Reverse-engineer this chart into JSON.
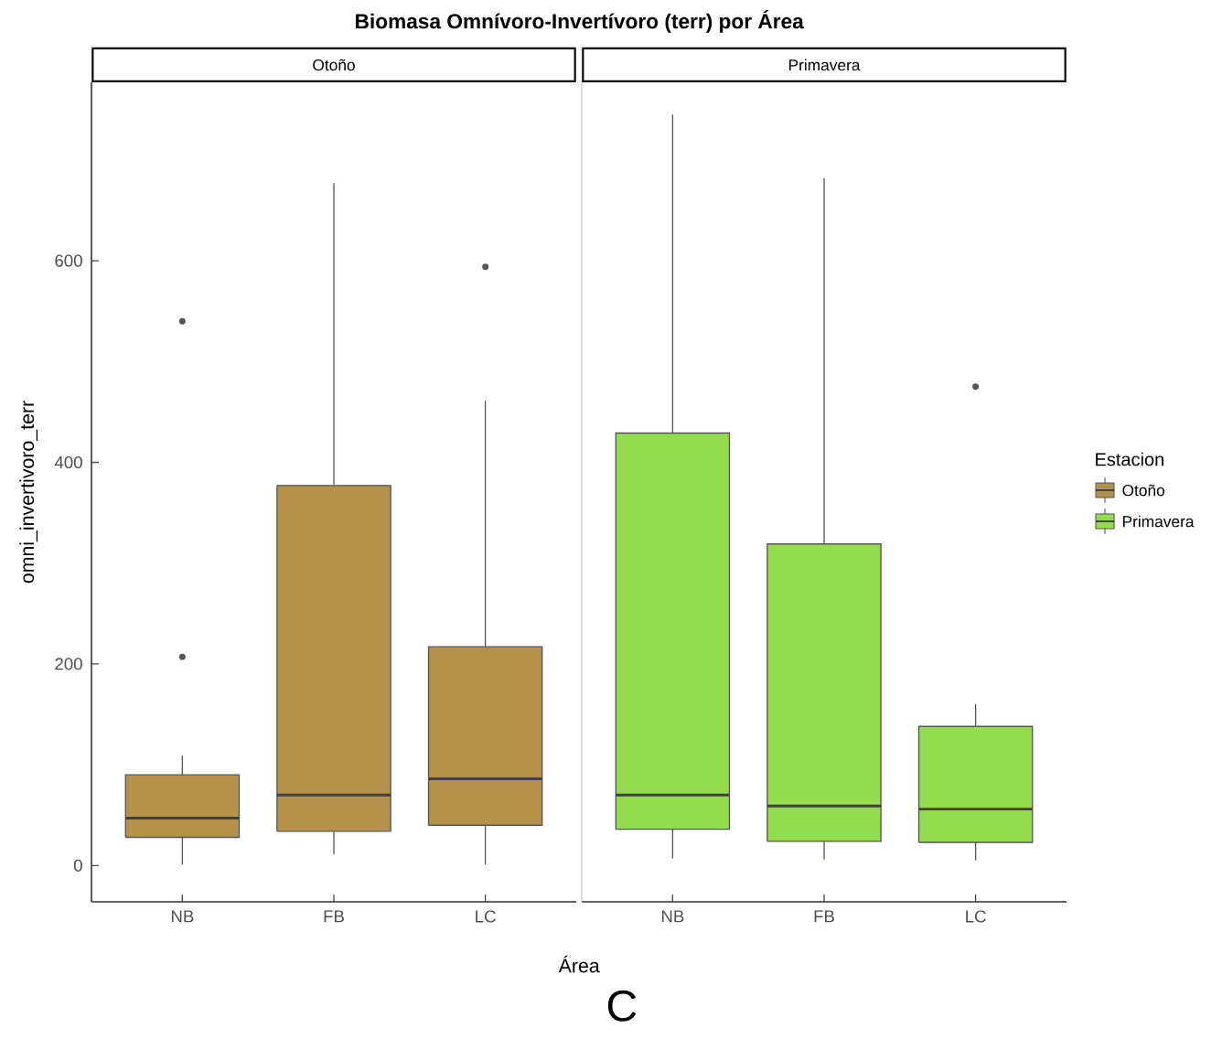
{
  "chart_data": [
    {
      "type": "box",
      "title": "Biomasa Omnívoro-Invertívoro (terr) por Área",
      "subtitle": "Otoño",
      "xlabel": "Área",
      "ylabel": "omni_invertivoro_terr",
      "categories": [
        "NB",
        "FB",
        "LC"
      ],
      "ylim": [
        -36,
        777
      ],
      "yticks": [
        0,
        200,
        400,
        600
      ],
      "annotations": [
        "C"
      ],
      "legend": "right",
      "series": [
        {
          "name": "Otoño",
          "color": "#b5924c",
          "boxes": [
            {
              "low": 1,
              "q1": 28,
              "median": 47,
              "q3": 90,
              "high": 109,
              "outliers": [
                540,
                207
              ]
            },
            {
              "low": 11,
              "q1": 34,
              "median": 70,
              "q3": 377,
              "high": 677
            },
            {
              "low": 1,
              "q1": 40,
              "median": 86,
              "q3": 217,
              "high": 461,
              "outliers": [
                594
              ]
            }
          ]
        }
      ]
    },
    {
      "type": "box",
      "subtitle": "Primavera",
      "categories": [
        "NB",
        "FB",
        "LC"
      ],
      "ylim": [
        -36,
        777
      ],
      "yticks": [
        0,
        200,
        400,
        600
      ],
      "tick_labels": "x",
      "legend": "right",
      "legend_title": "Estacion",
      "series": [
        {
          "name": "Primavera",
          "color": "#92dc4d",
          "boxes": [
            {
              "low": 7,
              "q1": 36,
              "median": 70,
              "q3": 429,
              "high": 745
            },
            {
              "low": 6,
              "q1": 24,
              "median": 59,
              "q3": 319,
              "high": 682
            },
            {
              "low": 5,
              "q1": 23,
              "median": 56,
              "q3": 138,
              "high": 160,
              "outliers": [
                475
              ]
            }
          ]
        }
      ]
    }
  ]
}
